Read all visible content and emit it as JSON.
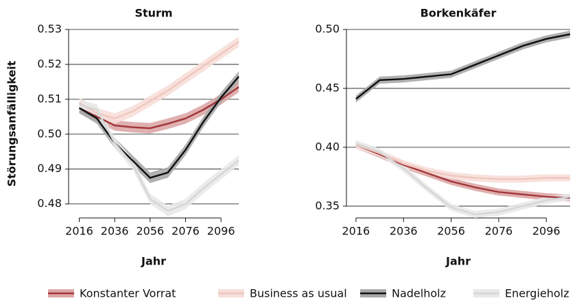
{
  "chart_data": [
    {
      "type": "line",
      "title": "Sturm",
      "xlabel": "Jahr",
      "ylabel": "Störungsanfälligkeit",
      "x": [
        2016,
        2026,
        2036,
        2046,
        2056,
        2066,
        2076,
        2086,
        2096,
        2106
      ],
      "xlim": [
        2010,
        2106
      ],
      "xticks": [
        2016,
        2036,
        2056,
        2076,
        2096
      ],
      "ylim": [
        0.476,
        0.53
      ],
      "yticks": [
        0.48,
        0.49,
        {
          "value": 0.5,
          "label": "0.50"
        },
        0.51,
        0.52,
        0.53
      ],
      "grid": true,
      "series": [
        {
          "name": "Konstanter Vorrat",
          "color": "#a3383c",
          "band_color": "#dca7a6",
          "ci": 0.0015,
          "values": [
            0.5075,
            0.505,
            0.5025,
            0.502,
            0.5017,
            0.503,
            0.5045,
            0.507,
            0.51,
            0.5135
          ]
        },
        {
          "name": "Business as usual",
          "color": "#f0c6be",
          "band_color": "#f7dfda",
          "ci": 0.0015,
          "values": [
            0.509,
            0.506,
            0.5045,
            0.5065,
            0.5095,
            0.5125,
            0.516,
            0.5195,
            0.523,
            0.5265
          ]
        },
        {
          "name": "Nadelholz",
          "color": "#111111",
          "band_color": "#a8a8a8",
          "ci": 0.0015,
          "values": [
            0.5075,
            0.5045,
            0.4975,
            0.4925,
            0.4875,
            0.489,
            0.4955,
            0.5035,
            0.5105,
            0.5165
          ]
        },
        {
          "name": "Energieholz",
          "color": "#d6d6d6",
          "band_color": "#e9e9e9",
          "ci": 0.0015,
          "values": [
            0.5085,
            0.507,
            0.4975,
            0.4915,
            0.4815,
            0.478,
            0.48,
            0.4845,
            0.4885,
            0.4925
          ]
        }
      ],
      "legend": "bottom"
    },
    {
      "type": "line",
      "title": "Borkenkäfer",
      "xlabel": "Jahr",
      "x": [
        2016,
        2026,
        2036,
        2046,
        2056,
        2066,
        2076,
        2086,
        2096,
        2106
      ],
      "xlim": [
        2012,
        2106
      ],
      "xticks": [
        2016,
        2036,
        2056,
        2076,
        2096
      ],
      "ylim": [
        0.34,
        0.5
      ],
      "yticks": [
        0.35,
        {
          "value": 0.4,
          "label": "0.40"
        },
        0.45,
        {
          "value": 0.5,
          "label": "0.50"
        }
      ],
      "grid": true,
      "series": [
        {
          "name": "Konstanter Vorrat",
          "color": "#a3383c",
          "band_color": "#dca7a6",
          "ci": 0.003,
          "values": [
            0.402,
            0.394,
            0.385,
            0.378,
            0.371,
            0.366,
            0.362,
            0.36,
            0.358,
            0.357
          ]
        },
        {
          "name": "Business as usual",
          "color": "#f0c6be",
          "band_color": "#f7dfda",
          "ci": 0.003,
          "values": [
            0.402,
            0.395,
            0.386,
            0.38,
            0.376,
            0.374,
            0.373,
            0.373,
            0.374,
            0.374
          ]
        },
        {
          "name": "Nadelholz",
          "color": "#111111",
          "band_color": "#a8a8a8",
          "ci": 0.003,
          "values": [
            0.441,
            0.457,
            0.458,
            0.46,
            0.462,
            0.47,
            0.478,
            0.486,
            0.492,
            0.496
          ]
        },
        {
          "name": "Energieholz",
          "color": "#d6d6d6",
          "band_color": "#e9e9e9",
          "ci": 0.003,
          "values": [
            0.403,
            0.396,
            0.382,
            0.365,
            0.349,
            0.343,
            0.345,
            0.35,
            0.355,
            0.358
          ]
        }
      ]
    }
  ]
}
